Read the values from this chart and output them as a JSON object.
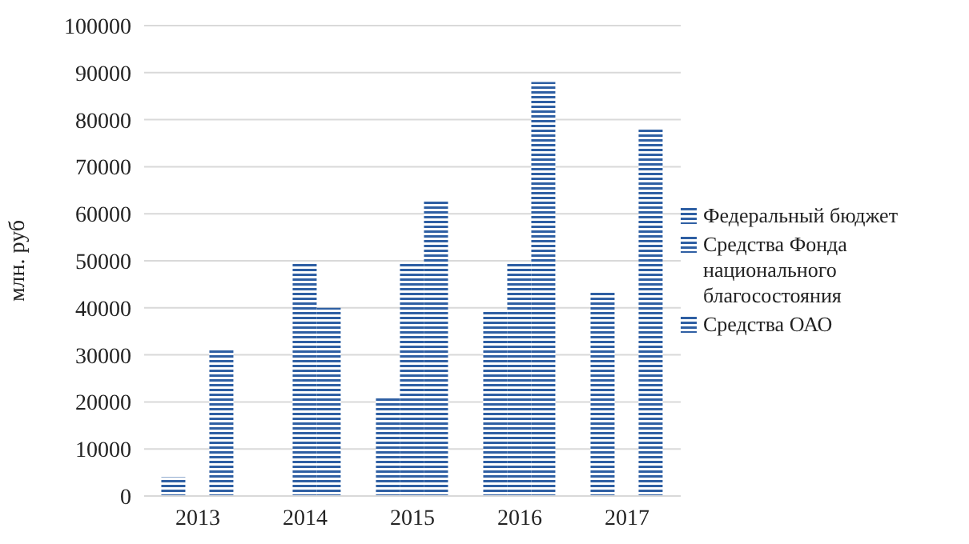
{
  "chart_data": {
    "type": "bar",
    "ylabel": "млн. руб",
    "categories": [
      "2013",
      "2014",
      "2015",
      "2016",
      "2017"
    ],
    "series": [
      {
        "name": "Федеральный бюджет",
        "color": "#2e5fa3",
        "values": [
          4000,
          null,
          21000,
          39500,
          43500
        ]
      },
      {
        "name": "Средства Фонда национального благосостояния",
        "color": "#2e5fa3",
        "values": [
          null,
          49500,
          49500,
          49500,
          null
        ]
      },
      {
        "name": "Средства ОАО",
        "color": "#2e5fa3",
        "values": [
          31000,
          40000,
          63000,
          88000,
          78000
        ]
      }
    ],
    "ylim": [
      0,
      100000
    ],
    "yticks": [
      0,
      10000,
      20000,
      30000,
      40000,
      50000,
      60000,
      70000,
      80000,
      90000,
      100000
    ],
    "grid": "y",
    "legend": "right"
  }
}
